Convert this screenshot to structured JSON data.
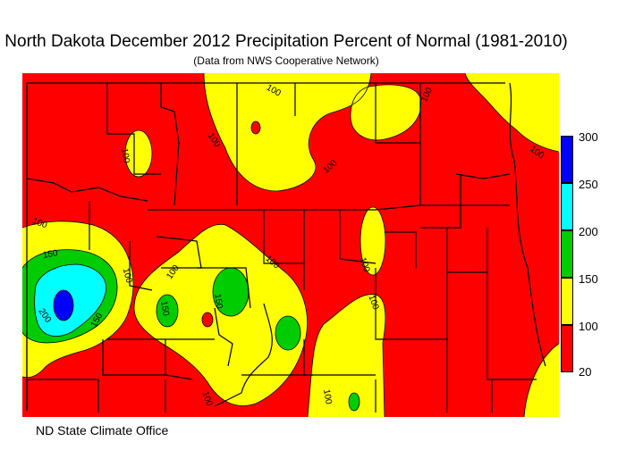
{
  "title": "North Dakota December 2012 Precipitation Percent of Normal (1981-2010)",
  "subtitle": "(Data from NWS Cooperative Network)",
  "credit": "ND State Climate Office",
  "legend": {
    "ticks": [
      "300",
      "250",
      "200",
      "150",
      "100",
      "20"
    ],
    "bands": [
      {
        "range": "250-300",
        "color": "#0000ff"
      },
      {
        "range": "200-250",
        "color": "#00ffff"
      },
      {
        "range": "150-200",
        "color": "#00cc00"
      },
      {
        "range": "100-150",
        "color": "#ffff00"
      },
      {
        "range": "20-100",
        "color": "#ff0000"
      }
    ]
  },
  "contour_labels": [
    "100",
    "100",
    "100",
    "100",
    "100",
    "100",
    "100",
    "100",
    "100",
    "100",
    "100",
    "100",
    "100",
    "100",
    "150",
    "150",
    "150",
    "150",
    "200"
  ]
}
